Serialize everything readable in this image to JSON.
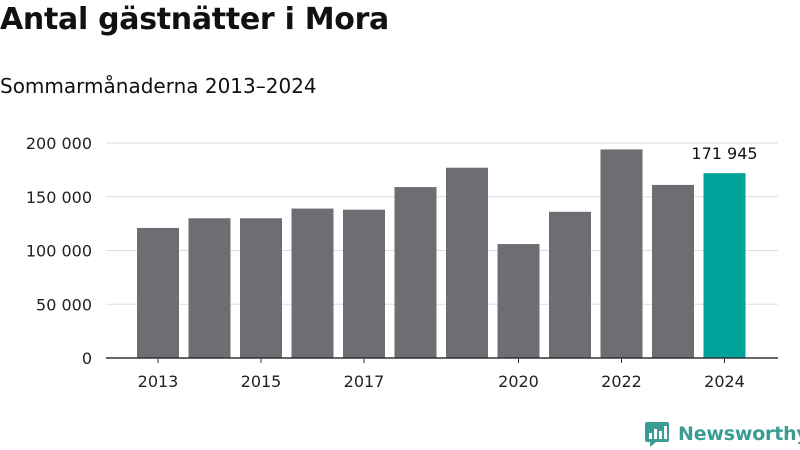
{
  "header": {
    "title": "Antal gästnätter i Mora",
    "subtitle": "Sommarmånaderna 2013–2024"
  },
  "branding": {
    "logo_text": "Newsworthy",
    "logo_icon": "newsworthy-chart-bubble-icon",
    "logo_color": "#3a9c92"
  },
  "chart_data": {
    "type": "bar",
    "categories": [
      "2013",
      "2014",
      "2015",
      "2016",
      "2017",
      "2018",
      "2019",
      "2020",
      "2021",
      "2022",
      "2023",
      "2024"
    ],
    "values": [
      121000,
      130000,
      130000,
      139000,
      138000,
      159000,
      177000,
      106000,
      136000,
      194000,
      161000,
      171945
    ],
    "x_tick_labels": [
      "2013",
      "",
      "2015",
      "",
      "2017",
      "",
      "",
      "2020",
      "",
      "2022",
      "",
      "2024"
    ],
    "y_ticks": [
      0,
      50000,
      100000,
      150000,
      200000
    ],
    "y_tick_labels": [
      "0",
      "50 000",
      "100 000",
      "150 000",
      "200 000"
    ],
    "ylim": [
      0,
      200000
    ],
    "highlight_index": 11,
    "highlight_label": "171 945",
    "colors": {
      "bar": "#6d6d73",
      "highlight": "#00a39a",
      "grid": "#dddddd",
      "axis": "#333333"
    },
    "grid": true,
    "xlabel": "",
    "ylabel": ""
  }
}
